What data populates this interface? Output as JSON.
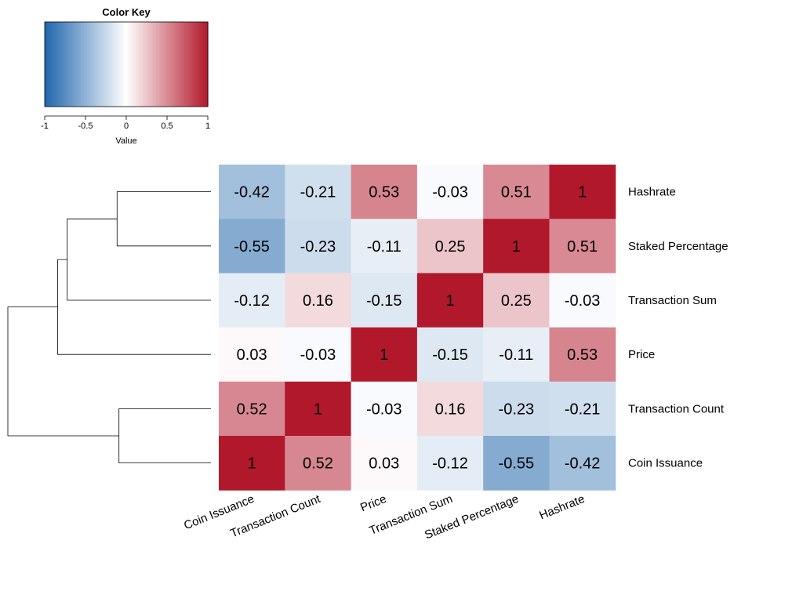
{
  "chart_data": {
    "type": "heatmap",
    "rows": [
      "Hashrate",
      "Staked Percentage",
      "Transaction Sum",
      "Price",
      "Transaction Count",
      "Coin Issuance"
    ],
    "columns": [
      "Coin Issuance",
      "Transaction Count",
      "Price",
      "Transaction Sum",
      "Staked Percentage",
      "Hashrate"
    ],
    "values": [
      [
        -0.42,
        -0.21,
        0.53,
        -0.03,
        0.51,
        1
      ],
      [
        -0.55,
        -0.23,
        -0.11,
        0.25,
        1,
        0.51
      ],
      [
        -0.12,
        0.16,
        -0.15,
        1,
        0.25,
        -0.03
      ],
      [
        0.03,
        -0.03,
        1,
        -0.15,
        -0.11,
        0.53
      ],
      [
        0.52,
        1,
        -0.03,
        0.16,
        -0.23,
        -0.21
      ],
      [
        1,
        0.52,
        0.03,
        -0.12,
        -0.55,
        -0.42
      ]
    ],
    "value_labels": [
      [
        "-0.42",
        "-0.21",
        "0.53",
        "-0.03",
        "0.51",
        "1"
      ],
      [
        "-0.55",
        "-0.23",
        "-0.11",
        "0.25",
        "1",
        "0.51"
      ],
      [
        "-0.12",
        "0.16",
        "-0.15",
        "1",
        "0.25",
        "-0.03"
      ],
      [
        "0.03",
        "-0.03",
        "1",
        "-0.15",
        "-0.11",
        "0.53"
      ],
      [
        "0.52",
        "1",
        "-0.03",
        "0.16",
        "-0.23",
        "-0.21"
      ],
      [
        "1",
        "0.52",
        "0.03",
        "-0.12",
        "-0.55",
        "-0.42"
      ]
    ],
    "color_key": {
      "title": "Color Key",
      "xlabel": "Value",
      "range": [
        -1,
        1
      ],
      "ticks": [
        -1,
        -0.5,
        0,
        0.5,
        1
      ],
      "tick_labels": [
        "-1",
        "-0.5",
        "0",
        "0.5",
        "1"
      ],
      "colors": {
        "low": "#2166ac",
        "mid": "#ffffff",
        "high": "#b2182b"
      }
    },
    "row_dendrogram": {
      "merges": [
        {
          "a": "Hashrate",
          "b": "Staked Percentage",
          "height": 0.49
        },
        {
          "a": "Hashrate+Staked Percentage",
          "b": "Transaction Sum",
          "height": 0.75
        },
        {
          "a": "Hashrate+Staked Percentage+Transaction Sum",
          "b": "Price",
          "height": 0.8
        },
        {
          "a": "Transaction Count",
          "b": "Coin Issuance",
          "height": 0.48
        },
        {
          "a": "upper cluster",
          "b": "lower cluster",
          "height": 1.06
        }
      ]
    },
    "grid": false,
    "legend": "top-left"
  }
}
